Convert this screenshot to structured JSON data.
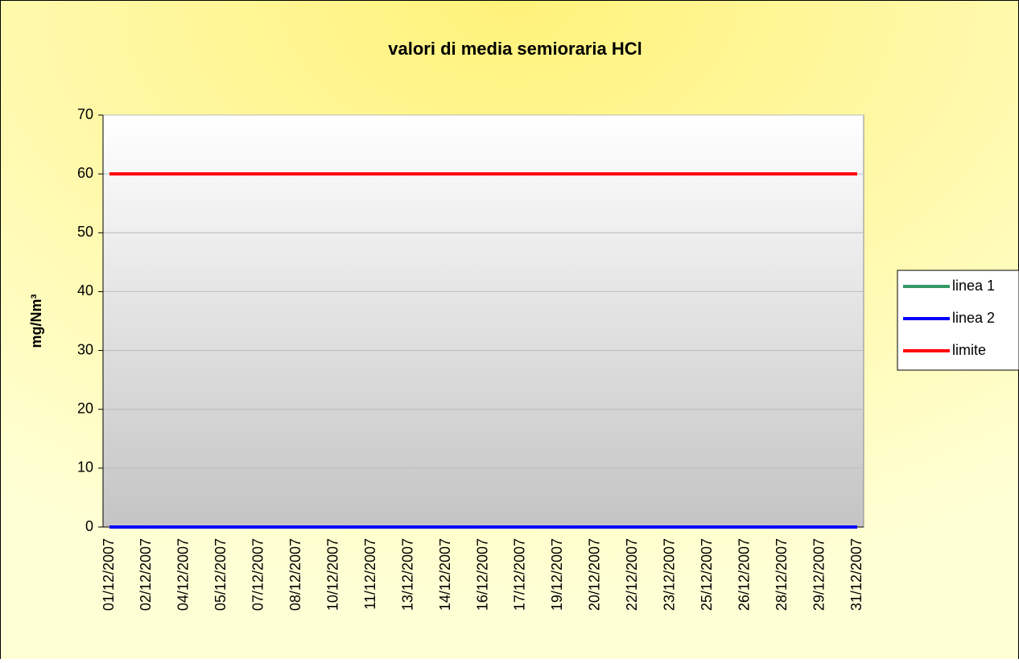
{
  "chart_data": {
    "type": "line",
    "title": "valori di media semioraria HCl",
    "y_label": "mg/Nm³",
    "categories": [
      "01/12/2007",
      "02/12/2007",
      "04/12/2007",
      "05/12/2007",
      "07/12/2007",
      "08/12/2007",
      "10/12/2007",
      "11/12/2007",
      "13/12/2007",
      "14/12/2007",
      "16/12/2007",
      "17/12/2007",
      "19/12/2007",
      "20/12/2007",
      "22/12/2007",
      "23/12/2007",
      "25/12/2007",
      "26/12/2007",
      "28/12/2007",
      "29/12/2007",
      "31/12/2007"
    ],
    "series": [
      {
        "name": "linea 1",
        "color": "#339966",
        "values": [
          0,
          0,
          0,
          0,
          0,
          0,
          0,
          0,
          0,
          0,
          0,
          0,
          0,
          0,
          0,
          0,
          0,
          0,
          0,
          0,
          0
        ]
      },
      {
        "name": "linea 2",
        "color": "#0000ff",
        "values": [
          0,
          0,
          0,
          0,
          0,
          0,
          0,
          0,
          0,
          0,
          0,
          0,
          0,
          0,
          0,
          0,
          0,
          0,
          0,
          0,
          0
        ]
      },
      {
        "name": "limite",
        "color": "#ff0000",
        "values": [
          60,
          60,
          60,
          60,
          60,
          60,
          60,
          60,
          60,
          60,
          60,
          60,
          60,
          60,
          60,
          60,
          60,
          60,
          60,
          60,
          60
        ]
      }
    ],
    "ylim": [
      0,
      70
    ],
    "yticks": [
      0,
      10,
      20,
      30,
      40,
      50,
      60,
      70
    ],
    "grid": true,
    "legend": "right"
  }
}
